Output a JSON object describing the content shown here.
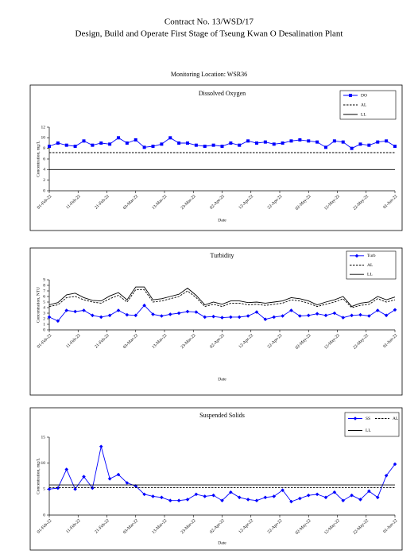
{
  "contract": "Contract No. 13/WSD/17",
  "project": "Design, Build and Operate First Stage of Tseung Kwan O Desalination Plant",
  "location": "Monitoring Location: WSR36",
  "chart_data": [
    {
      "type": "line",
      "title": "Dissolved Oxygen",
      "xlabel": "Date",
      "ylabel": "Concentration, mg/L",
      "x": [
        "2022-02-01",
        "2022-02-04",
        "2022-02-07",
        "2022-02-10",
        "2022-02-13",
        "2022-02-16",
        "2022-02-19",
        "2022-02-22",
        "2022-02-25",
        "2022-02-28",
        "2022-03-03",
        "2022-03-06",
        "2022-03-09",
        "2022-03-12",
        "2022-03-15",
        "2022-03-18",
        "2022-03-21",
        "2022-03-24",
        "2022-03-27",
        "2022-03-30",
        "2022-04-02",
        "2022-04-05",
        "2022-04-08",
        "2022-04-11",
        "2022-04-14",
        "2022-04-17",
        "2022-04-20",
        "2022-04-23",
        "2022-04-26",
        "2022-04-29",
        "2022-05-02",
        "2022-05-05",
        "2022-05-08",
        "2022-05-11",
        "2022-05-14",
        "2022-05-17",
        "2022-05-20",
        "2022-05-23",
        "2022-05-26",
        "2022-05-29",
        "2022-06-01"
      ],
      "series": [
        {
          "name": "DO",
          "color": "#0000ff",
          "dash": "solid",
          "marker": "square",
          "values": [
            8.4,
            9.0,
            8.6,
            8.4,
            9.4,
            8.6,
            9.0,
            8.8,
            10.0,
            9.0,
            9.6,
            8.2,
            8.4,
            8.8,
            10.0,
            9.0,
            9.0,
            8.6,
            8.4,
            8.6,
            8.4,
            9.0,
            8.6,
            9.4,
            9.0,
            9.2,
            8.8,
            9.0,
            9.4,
            9.6,
            9.4,
            9.2,
            8.2,
            9.4,
            9.2,
            8.0,
            8.8,
            8.6,
            9.2,
            9.4,
            8.4
          ]
        },
        {
          "name": "AL",
          "color": "#000000",
          "dash": "dashed",
          "marker": "none",
          "x": [
            "2022-02-01",
            "2022-06-01"
          ],
          "values": [
            7.2,
            7.2
          ]
        },
        {
          "name": "LL",
          "color": "#000000",
          "dash": "solid",
          "marker": "none",
          "x": [
            "2022-02-01",
            "2022-06-01"
          ],
          "values": [
            4,
            4
          ]
        }
      ],
      "xlim": [
        "2022-02-01",
        "2022-06-01"
      ],
      "xticks": [
        {
          "value": "2022-02-01",
          "label": "01-Feb-22"
        },
        {
          "value": "2022-02-11",
          "label": "11-Feb-22"
        },
        {
          "value": "2022-02-21",
          "label": "21-Feb-22"
        },
        {
          "value": "2022-03-03",
          "label": "03-Mar-22"
        },
        {
          "value": "2022-03-13",
          "label": "13-Mar-22"
        },
        {
          "value": "2022-03-23",
          "label": "23-Mar-22"
        },
        {
          "value": "2022-04-02",
          "label": "02-Apr-22"
        },
        {
          "value": "2022-04-12",
          "label": "12-Apr-22"
        },
        {
          "value": "2022-04-22",
          "label": "22-Apr-22"
        },
        {
          "value": "2022-05-02",
          "label": "02-May-22"
        },
        {
          "value": "2022-05-12",
          "label": "12-May-22"
        },
        {
          "value": "2022-05-22",
          "label": "22-May-22"
        },
        {
          "value": "2022-06-01",
          "label": "01-Jun-22"
        }
      ],
      "ylim": [
        0,
        12
      ],
      "yticks": [
        0,
        2,
        4,
        6,
        8,
        10,
        12
      ],
      "grid": false,
      "legend": "upper-right",
      "legend_columns": 1
    },
    {
      "type": "line",
      "title": "Turbidity",
      "xlabel": "Date",
      "ylabel": "Concentration, NTU",
      "x": [
        "2022-02-01",
        "2022-02-04",
        "2022-02-07",
        "2022-02-10",
        "2022-02-13",
        "2022-02-16",
        "2022-02-19",
        "2022-02-22",
        "2022-02-25",
        "2022-02-28",
        "2022-03-03",
        "2022-03-06",
        "2022-03-09",
        "2022-03-12",
        "2022-03-15",
        "2022-03-18",
        "2022-03-21",
        "2022-03-24",
        "2022-03-27",
        "2022-03-30",
        "2022-04-02",
        "2022-04-05",
        "2022-04-08",
        "2022-04-11",
        "2022-04-14",
        "2022-04-17",
        "2022-04-20",
        "2022-04-23",
        "2022-04-26",
        "2022-04-29",
        "2022-05-02",
        "2022-05-05",
        "2022-05-08",
        "2022-05-11",
        "2022-05-14",
        "2022-05-17",
        "2022-05-20",
        "2022-05-23",
        "2022-05-26",
        "2022-05-29",
        "2022-06-01"
      ],
      "series": [
        {
          "name": "Turb",
          "color": "#0000ff",
          "dash": "solid",
          "marker": "diamond",
          "values": [
            2.3,
            1.6,
            3.5,
            3.3,
            3.5,
            2.6,
            2.3,
            2.6,
            3.5,
            2.7,
            2.6,
            4.4,
            2.8,
            2.5,
            2.8,
            3.0,
            3.3,
            3.2,
            2.3,
            2.4,
            2.2,
            2.3,
            2.3,
            2.5,
            3.2,
            1.9,
            2.3,
            2.5,
            3.5,
            2.5,
            2.6,
            2.9,
            2.6,
            3.0,
            2.2,
            2.6,
            2.7,
            2.5,
            3.5,
            2.6,
            3.6
          ]
        },
        {
          "name": "AL",
          "color": "#000000",
          "dash": "dashed",
          "marker": "none",
          "values": [
            4.2,
            4.5,
            5.8,
            6.0,
            5.4,
            5.0,
            4.8,
            5.6,
            6.2,
            5.0,
            7.2,
            7.2,
            5.0,
            5.2,
            5.6,
            6.0,
            7.0,
            5.8,
            4.2,
            4.6,
            4.2,
            4.8,
            4.8,
            4.5,
            4.6,
            4.4,
            4.6,
            4.8,
            5.4,
            5.2,
            4.8,
            4.2,
            4.6,
            5.0,
            5.6,
            4.0,
            4.4,
            4.6,
            5.6,
            5.0,
            5.4
          ]
        },
        {
          "name": "LL",
          "color": "#000000",
          "dash": "solid",
          "marker": "none",
          "values": [
            4.5,
            4.9,
            6.3,
            6.6,
            5.8,
            5.3,
            5.2,
            6.1,
            6.7,
            5.4,
            7.7,
            7.7,
            5.4,
            5.6,
            6.0,
            6.4,
            7.5,
            6.2,
            4.5,
            5.0,
            4.6,
            5.2,
            5.2,
            4.9,
            5.0,
            4.8,
            5.0,
            5.2,
            5.8,
            5.6,
            5.2,
            4.5,
            5.0,
            5.4,
            6.0,
            4.2,
            4.8,
            5.0,
            6.0,
            5.4,
            5.9
          ]
        }
      ],
      "xlim": [
        "2022-02-01",
        "2022-06-01"
      ],
      "xticks": [
        {
          "value": "2022-02-01",
          "label": "01-Feb-22"
        },
        {
          "value": "2022-02-11",
          "label": "11-Feb-22"
        },
        {
          "value": "2022-02-21",
          "label": "21-Feb-22"
        },
        {
          "value": "2022-03-03",
          "label": "03-Mar-22"
        },
        {
          "value": "2022-03-13",
          "label": "13-Mar-22"
        },
        {
          "value": "2022-03-23",
          "label": "23-Mar-22"
        },
        {
          "value": "2022-04-02",
          "label": "02-Apr-22"
        },
        {
          "value": "2022-04-12",
          "label": "12-Apr-22"
        },
        {
          "value": "2022-04-22",
          "label": "22-Apr-22"
        },
        {
          "value": "2022-05-02",
          "label": "02-May-22"
        },
        {
          "value": "2022-05-12",
          "label": "12-May-22"
        },
        {
          "value": "2022-05-22",
          "label": "22-May-22"
        },
        {
          "value": "2022-06-01",
          "label": "01-Jun-22"
        }
      ],
      "ylim": [
        0,
        9
      ],
      "yticks": [
        0,
        1,
        2,
        3,
        4,
        5,
        6,
        7,
        8,
        9
      ],
      "grid": false,
      "legend": "upper-right",
      "legend_columns": 1
    },
    {
      "type": "line",
      "title": "Suspended Solids",
      "xlabel": "Date",
      "ylabel": "Concentration, mg/L",
      "x": [
        "2022-02-01",
        "2022-02-04",
        "2022-02-07",
        "2022-02-10",
        "2022-02-13",
        "2022-02-16",
        "2022-02-19",
        "2022-02-22",
        "2022-02-25",
        "2022-02-28",
        "2022-03-03",
        "2022-03-06",
        "2022-03-09",
        "2022-03-12",
        "2022-03-15",
        "2022-03-18",
        "2022-03-21",
        "2022-03-24",
        "2022-03-27",
        "2022-03-30",
        "2022-04-02",
        "2022-04-05",
        "2022-04-08",
        "2022-04-11",
        "2022-04-14",
        "2022-04-17",
        "2022-04-20",
        "2022-04-23",
        "2022-04-26",
        "2022-04-29",
        "2022-05-02",
        "2022-05-05",
        "2022-05-08",
        "2022-05-11",
        "2022-05-14",
        "2022-05-17",
        "2022-05-20",
        "2022-05-23",
        "2022-05-26",
        "2022-05-29",
        "2022-06-01"
      ],
      "series": [
        {
          "name": "SS",
          "color": "#0000ff",
          "dash": "solid",
          "marker": "diamond",
          "values": [
            5.0,
            5.2,
            8.8,
            5.0,
            7.4,
            5.2,
            13.2,
            7.0,
            7.8,
            6.2,
            5.6,
            4.0,
            3.6,
            3.4,
            2.8,
            2.8,
            3.0,
            4.0,
            3.6,
            3.8,
            2.8,
            4.4,
            3.4,
            3.0,
            2.8,
            3.4,
            3.6,
            4.8,
            2.6,
            3.2,
            3.8,
            4.0,
            3.4,
            4.4,
            2.8,
            3.8,
            3.0,
            4.6,
            3.4,
            7.6,
            9.8
          ]
        },
        {
          "name": "AL",
          "color": "#000000",
          "dash": "dashed",
          "marker": "none",
          "x": [
            "2022-02-01",
            "2022-06-01"
          ],
          "values": [
            5.3,
            5.3
          ]
        },
        {
          "name": "LL",
          "color": "#000000",
          "dash": "solid",
          "marker": "none",
          "x": [
            "2022-02-01",
            "2022-06-01"
          ],
          "values": [
            5.8,
            5.8
          ]
        }
      ],
      "xlim": [
        "2022-02-01",
        "2022-06-01"
      ],
      "xticks": [
        {
          "value": "2022-02-01",
          "label": "01-Feb-22"
        },
        {
          "value": "2022-02-11",
          "label": "11-Feb-22"
        },
        {
          "value": "2022-02-21",
          "label": "21-Feb-22"
        },
        {
          "value": "2022-03-03",
          "label": "03-Mar-22"
        },
        {
          "value": "2022-03-13",
          "label": "13-Mar-22"
        },
        {
          "value": "2022-03-23",
          "label": "23-Mar-22"
        },
        {
          "value": "2022-04-02",
          "label": "02-Apr-22"
        },
        {
          "value": "2022-04-12",
          "label": "12-Apr-22"
        },
        {
          "value": "2022-04-22",
          "label": "22-Apr-22"
        },
        {
          "value": "2022-05-02",
          "label": "02-May-22"
        },
        {
          "value": "2022-05-12",
          "label": "12-May-22"
        },
        {
          "value": "2022-05-22",
          "label": "22-May-22"
        },
        {
          "value": "2022-06-01",
          "label": "01-Jun-22"
        }
      ],
      "ylim": [
        0,
        15
      ],
      "yticks": [
        0,
        5,
        10,
        15
      ],
      "grid": false,
      "legend": "upper-right",
      "legend_columns": 2
    }
  ]
}
